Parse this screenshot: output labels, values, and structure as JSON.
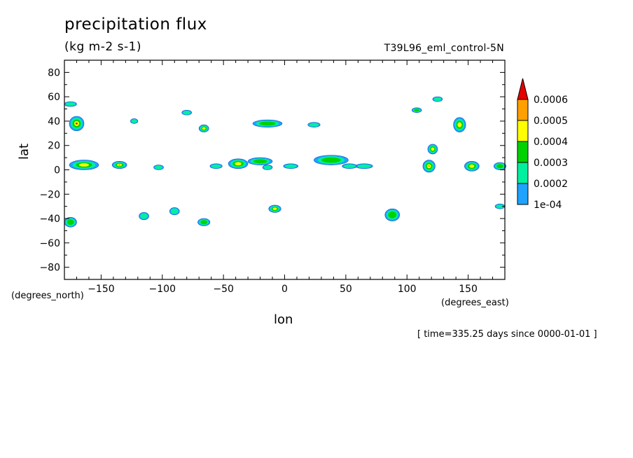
{
  "chart_data": {
    "type": "contour",
    "title": "precipitation flux",
    "units": "(kg m-2 s-1)",
    "model_label": "T39L96_eml_control-5N",
    "xlabel": "lon",
    "ylabel": "lat",
    "x_units_label": "(degrees_east)",
    "y_units_label": "(degrees_north)",
    "time_label": "[ time=335.25 days since 0000-01-01 ]",
    "xlim": [
      -180,
      180
    ],
    "ylim": [
      -90,
      90
    ],
    "x_ticks": [
      -150,
      -100,
      -50,
      0,
      50,
      100,
      150
    ],
    "y_ticks": [
      -80,
      -60,
      -40,
      -20,
      0,
      20,
      40,
      60,
      80
    ],
    "colorbar": {
      "levels": [
        "1e-04",
        "0.0002",
        "0.0003",
        "0.0004",
        "0.0005",
        "0.0006"
      ],
      "colors": [
        "#1fa3ff",
        "#00f0a0",
        "#00d200",
        "#ffff00",
        "#ffa000",
        "#e60000"
      ],
      "extend": "max"
    },
    "features": [
      {
        "lon": -170,
        "lat": 38,
        "rlon": 6,
        "rlat": 6,
        "level": 5
      },
      {
        "lon": -164,
        "lat": 4,
        "rlon": 12,
        "rlat": 4,
        "level": 3
      },
      {
        "lon": -135,
        "lat": 4,
        "rlon": 6,
        "rlat": 3,
        "level": 4
      },
      {
        "lon": -38,
        "lat": 5,
        "rlon": 8,
        "rlat": 4,
        "level": 3
      },
      {
        "lon": -20,
        "lat": 7,
        "rlon": 10,
        "rlat": 3,
        "level": 2
      },
      {
        "lon": -66,
        "lat": 34,
        "rlon": 4,
        "rlat": 3,
        "level": 3
      },
      {
        "lon": -14,
        "lat": 38,
        "rlon": 12,
        "rlat": 3,
        "level": 2
      },
      {
        "lon": -8,
        "lat": -32,
        "rlon": 5,
        "rlat": 3,
        "level": 3
      },
      {
        "lon": -66,
        "lat": -43,
        "rlon": 5,
        "rlat": 3,
        "level": 2
      },
      {
        "lon": -175,
        "lat": -43,
        "rlon": 5,
        "rlat": 4,
        "level": 2
      },
      {
        "lon": 38,
        "lat": 8,
        "rlon": 14,
        "rlat": 4,
        "level": 2
      },
      {
        "lon": 88,
        "lat": -37,
        "rlon": 6,
        "rlat": 5,
        "level": 2
      },
      {
        "lon": 118,
        "lat": 3,
        "rlon": 5,
        "rlat": 5,
        "level": 4
      },
      {
        "lon": 121,
        "lat": 17,
        "rlon": 4,
        "rlat": 4,
        "level": 3
      },
      {
        "lon": 143,
        "lat": 37,
        "rlon": 5,
        "rlat": 6,
        "level": 3
      },
      {
        "lon": 153,
        "lat": 3,
        "rlon": 6,
        "rlat": 4,
        "level": 3
      },
      {
        "lon": 176,
        "lat": 3,
        "rlon": 5,
        "rlat": 3,
        "level": 2
      },
      {
        "lon": 108,
        "lat": 49,
        "rlon": 4,
        "rlat": 2,
        "level": 2
      },
      {
        "lon": -80,
        "lat": 47,
        "rlon": 4,
        "rlat": 2,
        "level": 1
      },
      {
        "lon": -90,
        "lat": -34,
        "rlon": 4,
        "rlat": 3,
        "level": 1
      },
      {
        "lon": -115,
        "lat": -38,
        "rlon": 4,
        "rlat": 3,
        "level": 1
      },
      {
        "lon": -175,
        "lat": 54,
        "rlon": 5,
        "rlat": 2,
        "level": 1
      },
      {
        "lon": -123,
        "lat": 40,
        "rlon": 3,
        "rlat": 2,
        "level": 1
      },
      {
        "lon": -103,
        "lat": 2,
        "rlon": 4,
        "rlat": 2,
        "level": 1
      },
      {
        "lon": -56,
        "lat": 3,
        "rlon": 5,
        "rlat": 2,
        "level": 1
      },
      {
        "lon": 24,
        "lat": 37,
        "rlon": 5,
        "rlat": 2,
        "level": 1
      },
      {
        "lon": 65,
        "lat": 3,
        "rlon": 7,
        "rlat": 2,
        "level": 1
      },
      {
        "lon": 125,
        "lat": 58,
        "rlon": 4,
        "rlat": 2,
        "level": 1
      },
      {
        "lon": 176,
        "lat": -30,
        "rlon": 4,
        "rlat": 2,
        "level": 1
      },
      {
        "lon": -14,
        "lat": 2,
        "rlon": 4,
        "rlat": 2,
        "level": 1
      },
      {
        "lon": 5,
        "lat": 3,
        "rlon": 6,
        "rlat": 2,
        "level": 1
      },
      {
        "lon": 53,
        "lat": 3,
        "rlon": 6,
        "rlat": 2,
        "level": 1
      }
    ]
  }
}
